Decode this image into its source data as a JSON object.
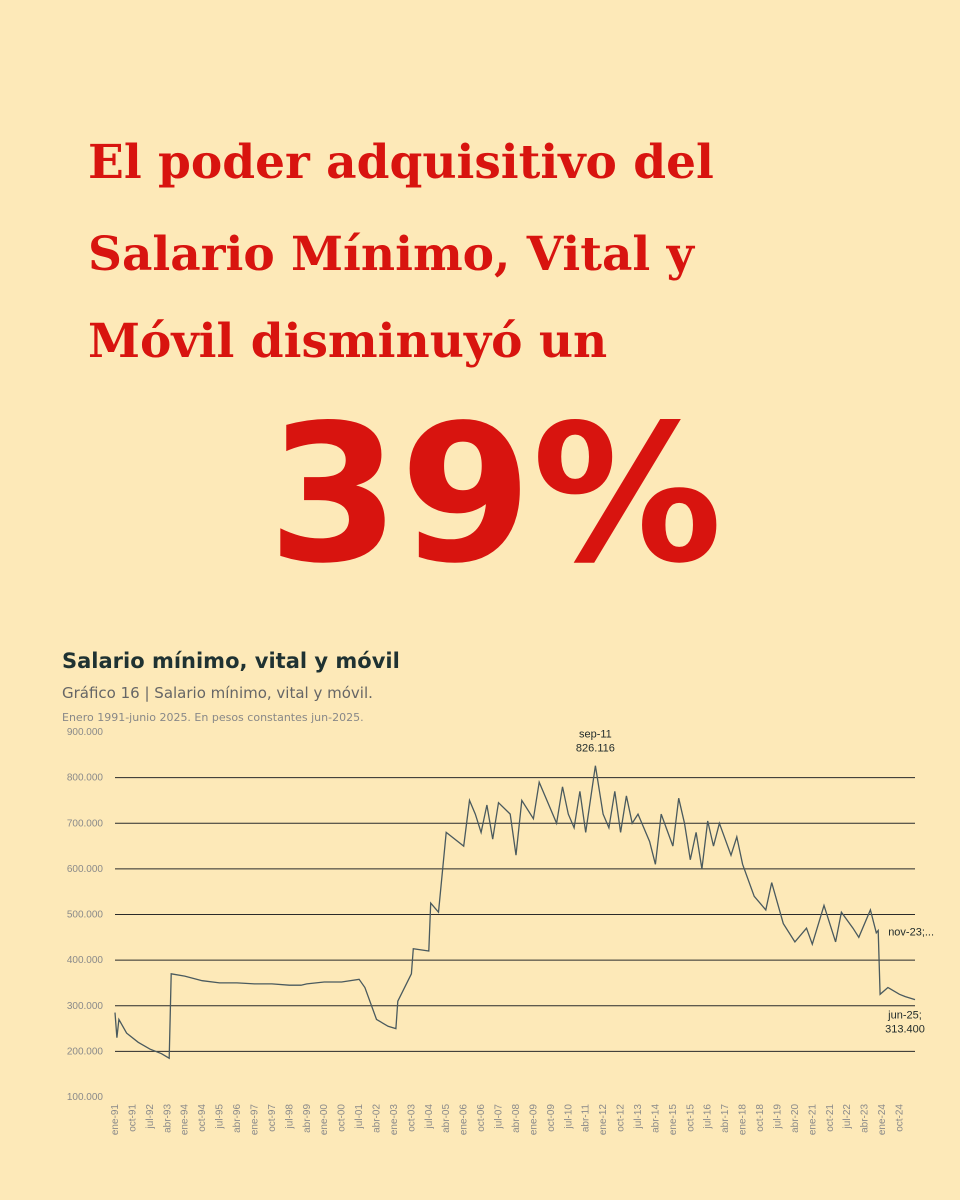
{
  "headline": {
    "lines": [
      "El poder adquisitivo del",
      "Salario Mínimo, Vital y",
      "Móvil disminuyó un"
    ],
    "figure": "39%"
  },
  "chart_data": {
    "type": "line",
    "title": "Salario mínimo, vital y móvil",
    "subtitle": "Gráfico 16 | Salario mínimo, vital y móvil.",
    "note": "Enero 1991-junio 2025. En pesos constantes jun-2025.",
    "color": "#4a5a5e",
    "grid": true,
    "x": [
      "ene-91",
      "feb-91",
      "mar-91",
      "jul-91",
      "ene-92",
      "jul-92",
      "ene-93",
      "may-93",
      "jun-93",
      "ene-94",
      "oct-94",
      "jul-95",
      "abr-96",
      "ene-97",
      "oct-97",
      "jul-98",
      "ene-99",
      "abr-99",
      "ene-00",
      "oct-00",
      "jul-01",
      "oct-01",
      "abr-02",
      "oct-02",
      "feb-03",
      "mar-03",
      "oct-03",
      "nov-03",
      "jul-04",
      "ago-04",
      "dic-04",
      "abr-05",
      "ene-06",
      "abr-06",
      "jul-06",
      "oct-06",
      "ene-07",
      "abr-07",
      "jul-07",
      "ene-08",
      "abr-08",
      "jul-08",
      "ene-09",
      "abr-09",
      "jul-09",
      "ene-10",
      "abr-10",
      "jul-10",
      "oct-10",
      "ene-11",
      "abr-11",
      "sep-11",
      "ene-12",
      "abr-12",
      "jul-12",
      "oct-12",
      "ene-13",
      "abr-13",
      "jul-13",
      "ene-14",
      "abr-14",
      "jul-14",
      "ene-15",
      "abr-15",
      "jul-15",
      "oct-15",
      "ene-16",
      "abr-16",
      "jul-16",
      "oct-16",
      "ene-17",
      "jul-17",
      "oct-17",
      "ene-18",
      "jul-18",
      "ene-19",
      "abr-19",
      "oct-19",
      "abr-20",
      "oct-20",
      "ene-21",
      "jul-21",
      "ene-22",
      "abr-22",
      "oct-22",
      "ene-23",
      "jul-23",
      "oct-23",
      "nov-23",
      "dic-23",
      "abr-24",
      "oct-24",
      "ene-25",
      "jun-25"
    ],
    "values": [
      285000,
      230000,
      270000,
      240000,
      220000,
      205000,
      195000,
      185000,
      370000,
      365000,
      355000,
      350000,
      350000,
      348000,
      348000,
      345000,
      345000,
      348000,
      352000,
      352000,
      358000,
      340000,
      270000,
      255000,
      250000,
      310000,
      370000,
      425000,
      420000,
      525000,
      505000,
      680000,
      650000,
      750000,
      720000,
      680000,
      740000,
      665000,
      745000,
      720000,
      630000,
      750000,
      710000,
      790000,
      760000,
      700000,
      780000,
      720000,
      690000,
      770000,
      680000,
      826116,
      720000,
      690000,
      770000,
      680000,
      760000,
      700000,
      720000,
      660000,
      610000,
      720000,
      650000,
      755000,
      700000,
      620000,
      680000,
      600000,
      705000,
      650000,
      700000,
      630000,
      670000,
      610000,
      540000,
      510000,
      570000,
      480000,
      440000,
      470000,
      435000,
      520000,
      440000,
      505000,
      470000,
      450000,
      510000,
      460000,
      465000,
      325000,
      340000,
      325000,
      320000,
      313400
    ],
    "xlim": [
      "ene-91",
      "jun-25"
    ],
    "xticks": [
      "ene-91",
      "oct-91",
      "jul-92",
      "abr-93",
      "ene-94",
      "oct-94",
      "jul-95",
      "abr-96",
      "ene-97",
      "oct-97",
      "jul-98",
      "abr-99",
      "ene-00",
      "oct-00",
      "jul-01",
      "abr-02",
      "ene-03",
      "oct-03",
      "jul-04",
      "abr-05",
      "ene-06",
      "oct-06",
      "jul-07",
      "abr-08",
      "ene-09",
      "oct-09",
      "jul-10",
      "abr-11",
      "ene-12",
      "oct-12",
      "jul-13",
      "abr-14",
      "ene-15",
      "oct-15",
      "jul-16",
      "abr-17",
      "ene-18",
      "oct-18",
      "jul-19",
      "abr-20",
      "ene-21",
      "oct-21",
      "jul-22",
      "abr-23",
      "ene-24",
      "oct-24"
    ],
    "ylim": [
      100000,
      900000
    ],
    "yticks": [
      {
        "value": 100000,
        "label": "100.000"
      },
      {
        "value": 200000,
        "label": "200.000"
      },
      {
        "value": 300000,
        "label": "300.000"
      },
      {
        "value": 400000,
        "label": "400.000"
      },
      {
        "value": 500000,
        "label": "500.000"
      },
      {
        "value": 600000,
        "label": "600.000"
      },
      {
        "value": 700000,
        "label": "700.000"
      },
      {
        "value": 800000,
        "label": "800.000"
      },
      {
        "value": 900000,
        "label": "900.000"
      }
    ],
    "annotations": [
      {
        "x": "sep-11",
        "value": 826116,
        "text": "sep-11",
        "label": "826.116",
        "position": "above"
      },
      {
        "x": "nov-23",
        "value": 465000,
        "text": "nov-23;...",
        "position": "right"
      },
      {
        "x": "jun-25",
        "value": 313400,
        "text": "jun-25;",
        "label": "313.400",
        "position": "below"
      }
    ]
  }
}
